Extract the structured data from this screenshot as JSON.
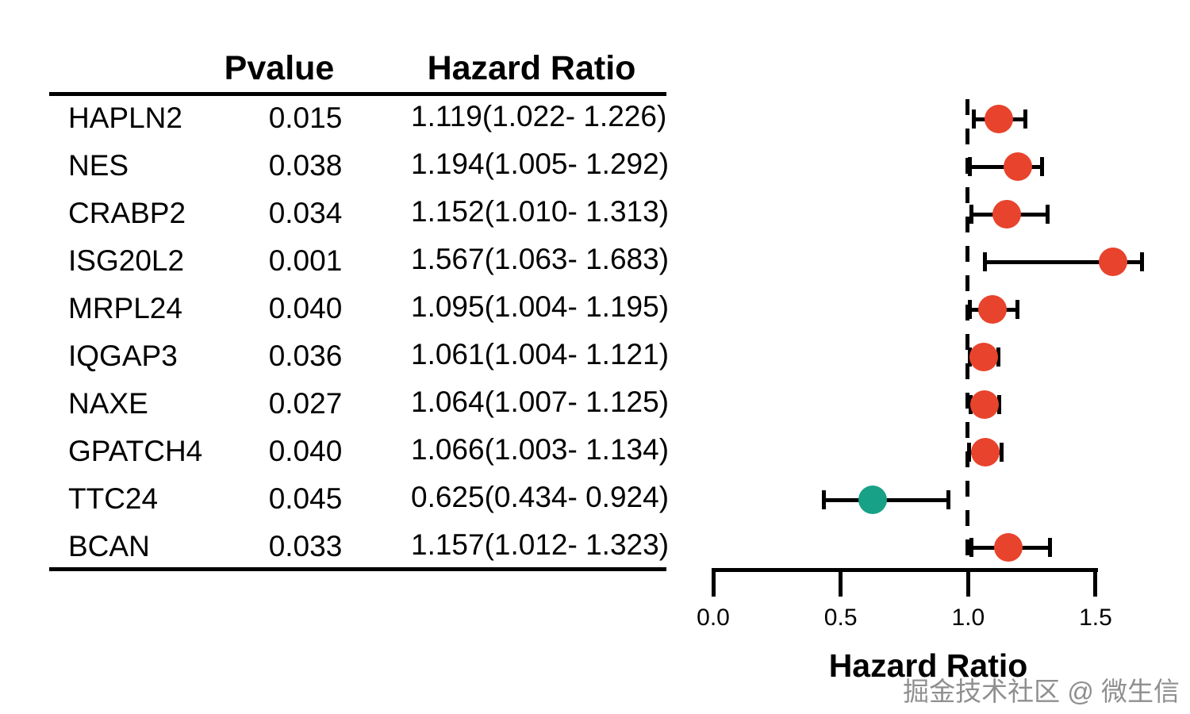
{
  "table": {
    "headers": {
      "pvalue": "Pvalue",
      "hazard_ratio": "Hazard Ratio"
    }
  },
  "axis": {
    "label": "Hazard Ratio",
    "tick_labels": [
      "0.0",
      "0.5",
      "1.0",
      "1.5"
    ],
    "tick_values": [
      0,
      0.5,
      1.0,
      1.5
    ],
    "xmin": 0,
    "xmax": 1.5,
    "reference_line": 1.0
  },
  "colors": {
    "risk_high": "#E8432C",
    "risk_low": "#17A186",
    "line": "#000000"
  },
  "watermark": "掘金技术社区 @ 微生信",
  "chart_data": {
    "type": "scatter",
    "subtype": "forest-plot",
    "title": "",
    "xlabel": "Hazard Ratio",
    "ylabel": "",
    "xlim": [
      0,
      1.75
    ],
    "grid": false,
    "reference_line": 1.0,
    "rows": [
      {
        "gene": "HAPLN2",
        "pvalue": "0.015",
        "hr_text": "1.119(1.022- 1.226)",
        "hr": 1.119,
        "ci_low": 1.022,
        "ci_high": 1.226
      },
      {
        "gene": "NES",
        "pvalue": "0.038",
        "hr_text": "1.194(1.005- 1.292)",
        "hr": 1.194,
        "ci_low": 1.005,
        "ci_high": 1.292
      },
      {
        "gene": "CRABP2",
        "pvalue": "0.034",
        "hr_text": "1.152(1.010- 1.313)",
        "hr": 1.152,
        "ci_low": 1.01,
        "ci_high": 1.313
      },
      {
        "gene": "ISG20L2",
        "pvalue": "0.001",
        "hr_text": "1.567(1.063- 1.683)",
        "hr": 1.567,
        "ci_low": 1.063,
        "ci_high": 1.683
      },
      {
        "gene": "MRPL24",
        "pvalue": "0.040",
        "hr_text": "1.095(1.004- 1.195)",
        "hr": 1.095,
        "ci_low": 1.004,
        "ci_high": 1.195
      },
      {
        "gene": "IQGAP3",
        "pvalue": "0.036",
        "hr_text": "1.061(1.004- 1.121)",
        "hr": 1.061,
        "ci_low": 1.004,
        "ci_high": 1.121
      },
      {
        "gene": "NAXE",
        "pvalue": "0.027",
        "hr_text": "1.064(1.007- 1.125)",
        "hr": 1.064,
        "ci_low": 1.007,
        "ci_high": 1.125
      },
      {
        "gene": "GPATCH4",
        "pvalue": "0.040",
        "hr_text": "1.066(1.003- 1.134)",
        "hr": 1.066,
        "ci_low": 1.003,
        "ci_high": 1.134
      },
      {
        "gene": "TTC24",
        "pvalue": "0.045",
        "hr_text": "0.625(0.434- 0.924)",
        "hr": 0.625,
        "ci_low": 0.434,
        "ci_high": 0.924
      },
      {
        "gene": "BCAN",
        "pvalue": "0.033",
        "hr_text": "1.157(1.012- 1.323)",
        "hr": 1.157,
        "ci_low": 1.012,
        "ci_high": 1.323
      }
    ]
  }
}
